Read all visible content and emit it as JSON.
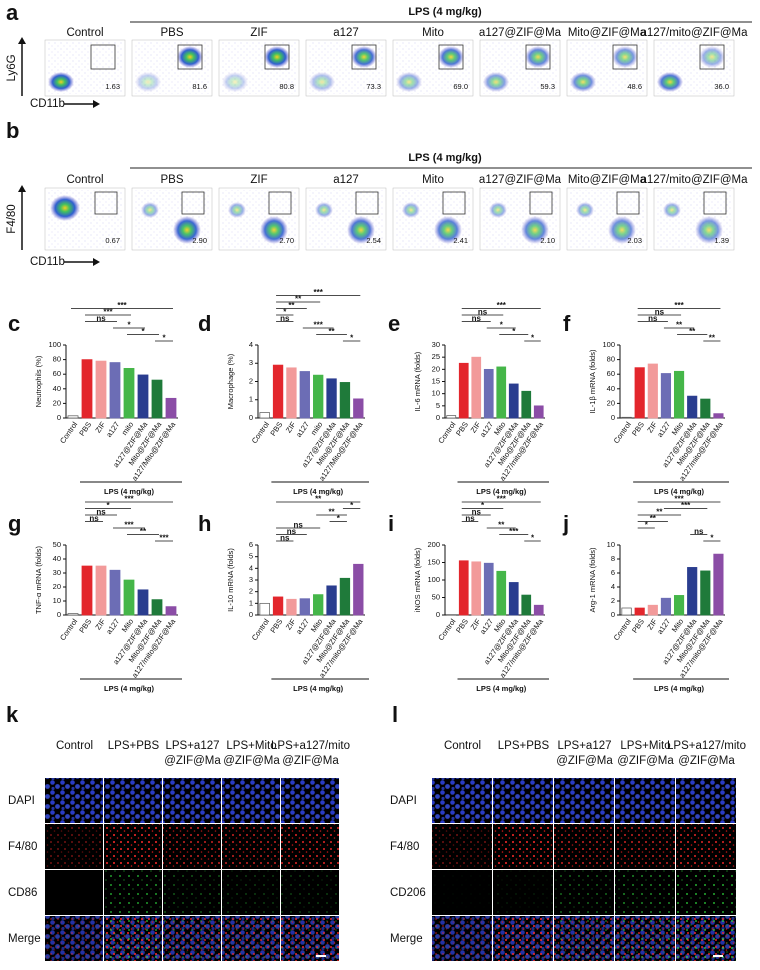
{
  "flow_panels": [
    {
      "panel_label": "a",
      "header": "LPS (4 mg/kg)",
      "y_axis": "Ly6G",
      "x_axis": "CD11b",
      "groups": [
        "Control",
        "PBS",
        "ZIF",
        "a127",
        "Mito",
        "a127@ZIF@Ma",
        "Mito@ZIF@Ma",
        "a127/mito@ZIF@Ma"
      ],
      "percentages": [
        "1.63",
        "81.6",
        "80.8",
        "73.3",
        "69.0",
        "59.3",
        "48.6",
        "36.0"
      ]
    },
    {
      "panel_label": "b",
      "header": "LPS (4 mg/kg)",
      "y_axis": "F4/80",
      "x_axis": "CD11b",
      "groups": [
        "Control",
        "PBS",
        "ZIF",
        "a127",
        "Mito",
        "a127@ZIF@Ma",
        "Mito@ZIF@Ma",
        "a127/mito@ZIF@Ma"
      ],
      "percentages": [
        "0.67",
        "2.90",
        "2.70",
        "2.54",
        "2.41",
        "2.10",
        "2.03",
        "1.39"
      ]
    }
  ],
  "chart_data": [
    {
      "type": "bar",
      "panel_label": "c",
      "ylabel": "Neutrophils (%)",
      "xlabel": "LPS (4 mg/kg)",
      "categories": [
        "Control",
        "PBS",
        "ZIF",
        "a127",
        "mito",
        "a127@ZIF@Ma",
        "Mito@ZIF@Ma",
        "a127/Mito@ZIF@Ma"
      ],
      "values": [
        3,
        80,
        78,
        76,
        68,
        59,
        52,
        27
      ],
      "colors": [
        "#ffffff",
        "#e3262c",
        "#f29a9a",
        "#6c6db5",
        "#45b649",
        "#2a3d8f",
        "#1f7a3a",
        "#8b4da6"
      ],
      "ylim": [
        0,
        100
      ],
      "yticks": [
        0,
        20,
        40,
        60,
        80,
        100
      ],
      "annotations": [
        "***",
        "***",
        "ns",
        "*",
        "*",
        "*"
      ]
    },
    {
      "type": "bar",
      "panel_label": "d",
      "ylabel": "Macrophage (%)",
      "xlabel": "LPS (4 mg/kg)",
      "categories": [
        "Control",
        "PBS",
        "ZIF",
        "a127",
        "mito",
        "a127@ZIF@Ma",
        "Mito@ZIF@Ma",
        "a127/Mito@ZIF@Ma"
      ],
      "values": [
        0.3,
        2.9,
        2.75,
        2.55,
        2.35,
        2.15,
        1.95,
        1.05
      ],
      "colors": [
        "#ffffff",
        "#e3262c",
        "#f29a9a",
        "#6c6db5",
        "#45b649",
        "#2a3d8f",
        "#1f7a3a",
        "#8b4da6"
      ],
      "ylim": [
        0,
        4
      ],
      "yticks": [
        0,
        1,
        2,
        3,
        4
      ],
      "annotations": [
        "***",
        "**",
        "**",
        "*",
        "ns",
        "***",
        "**",
        "*"
      ]
    },
    {
      "type": "bar",
      "panel_label": "e",
      "ylabel": "IL-6 mRNA (folds)",
      "xlabel": "LPS (4 mg/kg)",
      "categories": [
        "Control",
        "PBS",
        "ZIF",
        "a127",
        "Mito",
        "a127@ZIF@Ma",
        "Mito@ZIF@Ma",
        "a127/mito@ZIF@Ma"
      ],
      "values": [
        1,
        22.5,
        25,
        20,
        21,
        14,
        11,
        5
      ],
      "colors": [
        "#ffffff",
        "#e3262c",
        "#f29a9a",
        "#6c6db5",
        "#45b649",
        "#2a3d8f",
        "#1f7a3a",
        "#8b4da6"
      ],
      "ylim": [
        0,
        30
      ],
      "yticks": [
        0,
        5,
        10,
        15,
        20,
        25,
        30
      ],
      "annotations": [
        "***",
        "ns",
        "ns",
        "*",
        "*",
        "*"
      ]
    },
    {
      "type": "bar",
      "panel_label": "f",
      "ylabel": "IL-1β mRNA (folds)",
      "xlabel": "LPS (4 mg/kg)",
      "categories": [
        "Control",
        "PBS",
        "ZIF",
        "a127",
        "Mito",
        "a127@ZIF@Ma",
        "Mito@ZIF@Ma",
        "a127/mito@ZIF@Ma"
      ],
      "values": [
        1,
        69,
        74,
        61,
        64,
        30,
        26,
        6
      ],
      "colors": [
        "#ffffff",
        "#e3262c",
        "#f29a9a",
        "#6c6db5",
        "#45b649",
        "#2a3d8f",
        "#1f7a3a",
        "#8b4da6"
      ],
      "ylim": [
        0,
        100
      ],
      "yticks": [
        0,
        20,
        40,
        60,
        80,
        100
      ],
      "annotations": [
        "***",
        "ns",
        "ns",
        "**",
        "**",
        "**"
      ]
    },
    {
      "type": "bar",
      "panel_label": "g",
      "ylabel": "TNF-α mRNA (folds)",
      "xlabel": "LPS (4 mg/kg)",
      "categories": [
        "Control",
        "PBS",
        "ZIF",
        "a127",
        "Mito",
        "a127@ZIF@Ma",
        "Mito@ZIF@Ma",
        "a127/mito@ZIF@Ma"
      ],
      "values": [
        1,
        35,
        35,
        32,
        25,
        18,
        11,
        6
      ],
      "colors": [
        "#ffffff",
        "#e3262c",
        "#f29a9a",
        "#6c6db5",
        "#45b649",
        "#2a3d8f",
        "#1f7a3a",
        "#8b4da6"
      ],
      "ylim": [
        0,
        50
      ],
      "yticks": [
        0,
        10,
        20,
        30,
        40,
        50
      ],
      "annotations": [
        "***",
        "*",
        "ns",
        "ns",
        "***",
        "**",
        "***"
      ]
    },
    {
      "type": "bar",
      "panel_label": "h",
      "ylabel": "IL-10 mRNA (folds)",
      "xlabel": "LPS (4 mg/kg)",
      "categories": [
        "Control",
        "PBS",
        "ZIF",
        "a127",
        "Mito",
        "a127@ZIF@Ma",
        "Mito@ZIF@Ma",
        "a127/mito@ZIF@Ma"
      ],
      "values": [
        1,
        1.55,
        1.35,
        1.4,
        1.75,
        2.5,
        3.15,
        4.35
      ],
      "colors": [
        "#ffffff",
        "#e3262c",
        "#f29a9a",
        "#6c6db5",
        "#45b649",
        "#2a3d8f",
        "#1f7a3a",
        "#8b4da6"
      ],
      "ylim": [
        0,
        6
      ],
      "yticks": [
        0,
        1,
        2,
        3,
        4,
        5,
        6
      ],
      "annotations": [
        "**",
        "*",
        "**",
        "*",
        "ns",
        "ns",
        "ns"
      ]
    },
    {
      "type": "bar",
      "panel_label": "i",
      "ylabel": "iNOS mRNA (folds)",
      "xlabel": "LPS (4 mg/kg)",
      "categories": [
        "Control",
        "PBS",
        "ZIF",
        "a127",
        "Mito",
        "a127@ZIF@Ma",
        "Mito@ZIF@Ma",
        "a127/mito@ZIF@Ma"
      ],
      "values": [
        1,
        155,
        152,
        148,
        125,
        93,
        57,
        28
      ],
      "colors": [
        "#ffffff",
        "#e3262c",
        "#f29a9a",
        "#6c6db5",
        "#45b649",
        "#2a3d8f",
        "#1f7a3a",
        "#8b4da6"
      ],
      "ylim": [
        0,
        200
      ],
      "yticks": [
        0,
        50,
        100,
        150,
        200
      ],
      "annotations": [
        "***",
        "*",
        "ns",
        "ns",
        "**",
        "***",
        "*"
      ]
    },
    {
      "type": "bar",
      "panel_label": "j",
      "ylabel": "Arg-1 mRNA (folds)",
      "xlabel": "LPS (4 mg/kg)",
      "categories": [
        "Control",
        "PBS",
        "ZIF",
        "a127",
        "Mito",
        "a127@ZIF@Ma",
        "Mito@ZIF@Ma",
        "a127/mito@ZIF@Ma"
      ],
      "values": [
        1,
        1,
        1.4,
        2.4,
        2.8,
        6.8,
        6.3,
        8.7
      ],
      "colors": [
        "#ffffff",
        "#e3262c",
        "#f29a9a",
        "#6c6db5",
        "#45b649",
        "#2a3d8f",
        "#1f7a3a",
        "#8b4da6"
      ],
      "ylim": [
        0,
        10
      ],
      "yticks": [
        0,
        2,
        4,
        6,
        8,
        10
      ],
      "annotations": [
        "***",
        "***",
        "**",
        "**",
        "*",
        "ns",
        "*"
      ]
    }
  ],
  "microscopy_panels": [
    {
      "panel_label": "k",
      "columns": [
        [
          "Control"
        ],
        [
          "LPS+PBS"
        ],
        [
          "LPS+a127",
          "@ZIF@Ma"
        ],
        [
          "LPS+Mito",
          "@ZIF@Ma"
        ],
        [
          "LPS+a127/mito",
          "@ZIF@Ma"
        ]
      ],
      "rows": [
        "DAPI",
        "F4/80",
        "CD86",
        "Merge"
      ]
    },
    {
      "panel_label": "l",
      "columns": [
        [
          "Control"
        ],
        [
          "LPS+PBS"
        ],
        [
          "LPS+a127",
          "@ZIF@Ma"
        ],
        [
          "LPS+Mito",
          "@ZIF@Ma"
        ],
        [
          "LPS+a127/mito",
          "@ZIF@Ma"
        ]
      ],
      "rows": [
        "DAPI",
        "F4/80",
        "CD206",
        "Merge"
      ]
    }
  ]
}
